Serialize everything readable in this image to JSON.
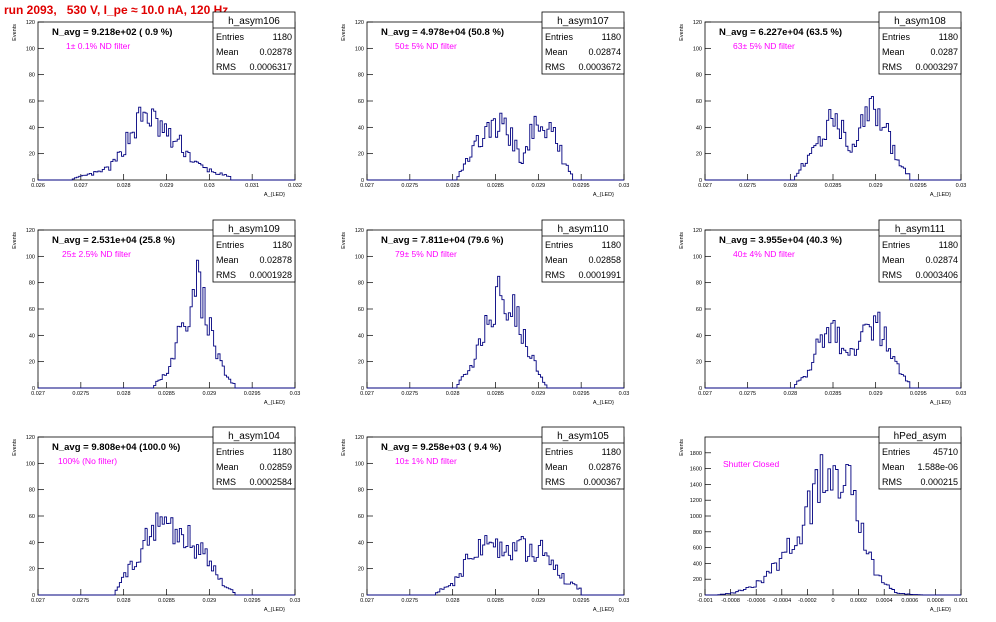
{
  "page": {
    "title": "run 2093,   530 V, I_pe ≈ 10.0 nA, 120 Hz"
  },
  "colors": {
    "title": "#e00000",
    "histogram": "#00007f",
    "annotation": "#ff00ff",
    "axis": "#000000",
    "background": "#ffffff"
  },
  "common_axis": {
    "ylabel": "Events",
    "xlabel": "A_{LED}"
  },
  "chart_data": [
    {
      "type": "bar",
      "style": "histogram-step",
      "name": "h_asym106",
      "navg": "N_avg = 9.218e+02 ( 0.9 %)",
      "note": "1± 0.1% ND filter",
      "stats": [
        [
          "Entries",
          "1180"
        ],
        [
          "Mean",
          "0.02878"
        ],
        [
          "RMS",
          "0.0006317"
        ]
      ],
      "xlim": [
        0.026,
        0.032
      ],
      "xticks": [
        "0.026",
        "0.027",
        "0.028",
        "0.029",
        "0.03",
        "0.031",
        "0.032"
      ],
      "ylim": [
        0,
        120
      ],
      "yticks": [
        "0",
        "20",
        "40",
        "60",
        "80",
        "100",
        "120"
      ],
      "bins": 120,
      "x": [
        0.0268,
        0.02695,
        0.0272,
        0.02745,
        0.0277,
        0.0279,
        0.0281,
        0.0283,
        0.02845,
        0.0286,
        0.0287,
        0.0288,
        0.02895,
        0.0291,
        0.0293,
        0.0295,
        0.0297,
        0.02995,
        0.0302,
        0.0305
      ],
      "values": [
        1,
        2,
        4,
        6,
        10,
        18,
        32,
        42,
        48,
        50,
        44,
        40,
        38,
        30,
        28,
        20,
        12,
        8,
        5,
        2
      ]
    },
    {
      "type": "bar",
      "style": "histogram-step",
      "name": "h_asym107",
      "navg": "N_avg = 4.978e+04 (50.8 %)",
      "note": "50± 5% ND filter",
      "stats": [
        [
          "Entries",
          "1180"
        ],
        [
          "Mean",
          "0.02874"
        ],
        [
          "RMS",
          "0.0003672"
        ]
      ],
      "xlim": [
        0.027,
        0.03
      ],
      "xticks": [
        "0.027",
        "0.0275",
        "0.028",
        "0.0285",
        "0.029",
        "0.0295",
        "0.03"
      ],
      "ylim": [
        0,
        120
      ],
      "yticks": [
        "0",
        "20",
        "40",
        "60",
        "80",
        "100",
        "120"
      ],
      "bins": 120,
      "x": [
        0.02805,
        0.0281,
        0.0282,
        0.0283,
        0.02845,
        0.0286,
        0.0287,
        0.0288,
        0.02885,
        0.0289,
        0.02895,
        0.029,
        0.02905,
        0.0291,
        0.0292,
        0.0293,
        0.0294
      ],
      "values": [
        2,
        8,
        20,
        30,
        38,
        42,
        30,
        15,
        18,
        30,
        44,
        52,
        48,
        40,
        30,
        15,
        4
      ]
    },
    {
      "type": "bar",
      "style": "histogram-step",
      "name": "h_asym108",
      "navg": "N_avg = 6.227e+04 (63.5 %)",
      "note": "63± 5% ND filter",
      "stats": [
        [
          "Entries",
          "1180"
        ],
        [
          "Mean",
          "0.0287"
        ],
        [
          "RMS",
          "0.0003297"
        ]
      ],
      "xlim": [
        0.027,
        0.03
      ],
      "xticks": [
        "0.027",
        "0.0275",
        "0.028",
        "0.0285",
        "0.029",
        "0.0295",
        "0.03"
      ],
      "ylim": [
        0,
        120
      ],
      "yticks": [
        "0",
        "20",
        "40",
        "60",
        "80",
        "100",
        "120"
      ],
      "bins": 120,
      "x": [
        0.02805,
        0.0282,
        0.0283,
        0.0284,
        0.0285,
        0.0286,
        0.0287,
        0.02875,
        0.0288,
        0.0289,
        0.029,
        0.02905,
        0.0291,
        0.0292,
        0.0293,
        0.0294
      ],
      "values": [
        3,
        15,
        28,
        40,
        45,
        38,
        28,
        30,
        40,
        48,
        52,
        50,
        40,
        25,
        10,
        3
      ]
    },
    {
      "type": "bar",
      "style": "histogram-step",
      "name": "h_asym109",
      "navg": "N_avg = 2.531e+04 (25.8 %)",
      "note": "25± 2.5% ND filter",
      "stats": [
        [
          "Entries",
          "1180"
        ],
        [
          "Mean",
          "0.02878"
        ],
        [
          "RMS",
          "0.0001928"
        ]
      ],
      "xlim": [
        0.027,
        0.03
      ],
      "xticks": [
        "0.027",
        "0.0275",
        "0.028",
        "0.0285",
        "0.029",
        "0.0295",
        "0.03"
      ],
      "ylim": [
        0,
        120
      ],
      "yticks": [
        "0",
        "20",
        "40",
        "60",
        "80",
        "100",
        "120"
      ],
      "bins": 120,
      "x": [
        0.02835,
        0.0285,
        0.0286,
        0.0287,
        0.0288,
        0.02885,
        0.0289,
        0.02895,
        0.029,
        0.0291,
        0.0292,
        0.0293
      ],
      "values": [
        2,
        10,
        30,
        52,
        70,
        80,
        75,
        60,
        45,
        25,
        8,
        2
      ]
    },
    {
      "type": "bar",
      "style": "histogram-step",
      "name": "h_asym110",
      "navg": "N_avg = 7.811e+04 (79.6 %)",
      "note": "79± 5% ND filter",
      "stats": [
        [
          "Entries",
          "1180"
        ],
        [
          "Mean",
          "0.02858"
        ],
        [
          "RMS",
          "0.0001991"
        ]
      ],
      "xlim": [
        0.027,
        0.03
      ],
      "xticks": [
        "0.027",
        "0.0275",
        "0.028",
        "0.0285",
        "0.029",
        "0.0295",
        "0.03"
      ],
      "ylim": [
        0,
        120
      ],
      "yticks": [
        "0",
        "20",
        "40",
        "60",
        "80",
        "100",
        "120"
      ],
      "bins": 120,
      "x": [
        0.02805,
        0.0282,
        0.0283,
        0.0284,
        0.0285,
        0.02855,
        0.0286,
        0.0287,
        0.0288,
        0.0289,
        0.029,
        0.0291
      ],
      "values": [
        3,
        12,
        30,
        48,
        65,
        75,
        70,
        60,
        48,
        30,
        12,
        2
      ]
    },
    {
      "type": "bar",
      "style": "histogram-step",
      "name": "h_asym111",
      "navg": "N_avg = 3.955e+04 (40.3 %)",
      "note": "40± 4% ND filter",
      "stats": [
        [
          "Entries",
          "1180"
        ],
        [
          "Mean",
          "0.02874"
        ],
        [
          "RMS",
          "0.0003406"
        ]
      ],
      "xlim": [
        0.027,
        0.03
      ],
      "xticks": [
        "0.027",
        "0.0275",
        "0.028",
        "0.0285",
        "0.029",
        "0.0295",
        "0.03"
      ],
      "ylim": [
        0,
        120
      ],
      "yticks": [
        "0",
        "20",
        "40",
        "60",
        "80",
        "100",
        "120"
      ],
      "bins": 120,
      "x": [
        0.02805,
        0.0282,
        0.0283,
        0.0284,
        0.0285,
        0.0286,
        0.0287,
        0.02875,
        0.0288,
        0.0289,
        0.029,
        0.0291,
        0.0292,
        0.0293,
        0.0294
      ],
      "values": [
        3,
        12,
        28,
        38,
        42,
        35,
        25,
        28,
        38,
        46,
        50,
        40,
        25,
        10,
        3
      ]
    },
    {
      "type": "bar",
      "style": "histogram-step",
      "name": "h_asym104",
      "navg": "N_avg = 9.808e+04 (100.0 %)",
      "note": "100% (No filter)",
      "stats": [
        [
          "Entries",
          "1180"
        ],
        [
          "Mean",
          "0.02859"
        ],
        [
          "RMS",
          "0.0002584"
        ]
      ],
      "xlim": [
        0.027,
        0.03
      ],
      "xticks": [
        "0.027",
        "0.0275",
        "0.028",
        "0.0285",
        "0.029",
        "0.0295",
        "0.03"
      ],
      "ylim": [
        0,
        120
      ],
      "yticks": [
        "0",
        "20",
        "40",
        "60",
        "80",
        "100",
        "120"
      ],
      "bins": 120,
      "x": [
        0.0279,
        0.028,
        0.0281,
        0.0282,
        0.0283,
        0.0284,
        0.0285,
        0.0286,
        0.0287,
        0.0288,
        0.0289,
        0.029,
        0.0291,
        0.0292,
        0.0293
      ],
      "values": [
        4,
        12,
        22,
        35,
        48,
        55,
        56,
        50,
        45,
        40,
        32,
        25,
        15,
        6,
        2
      ]
    },
    {
      "type": "bar",
      "style": "histogram-step",
      "name": "h_asym105",
      "navg": "N_avg = 9.258e+03 ( 9.4 %)",
      "note": "10± 1% ND filter",
      "stats": [
        [
          "Entries",
          "1180"
        ],
        [
          "Mean",
          "0.02876"
        ],
        [
          "RMS",
          "0.000367"
        ]
      ],
      "xlim": [
        0.027,
        0.03
      ],
      "xticks": [
        "0.027",
        "0.0275",
        "0.028",
        "0.0285",
        "0.029",
        "0.0295",
        "0.03"
      ],
      "ylim": [
        0,
        120
      ],
      "yticks": [
        "0",
        "20",
        "40",
        "60",
        "80",
        "100",
        "120"
      ],
      "bins": 120,
      "x": [
        0.0278,
        0.028,
        0.0281,
        0.0282,
        0.0283,
        0.0284,
        0.0285,
        0.0286,
        0.0287,
        0.0288,
        0.0289,
        0.029,
        0.0291,
        0.0292,
        0.0293,
        0.0295
      ],
      "values": [
        2,
        8,
        18,
        28,
        34,
        38,
        36,
        30,
        34,
        36,
        32,
        34,
        30,
        22,
        12,
        4
      ]
    },
    {
      "type": "bar",
      "style": "histogram-step",
      "name": "hPed_asym",
      "navg": "",
      "note": "Shutter Closed",
      "stats": [
        [
          "Entries",
          "45710"
        ],
        [
          "Mean",
          "1.588e-06"
        ],
        [
          "RMS",
          "0.000215"
        ]
      ],
      "xlim": [
        -0.001,
        0.001
      ],
      "xticks": [
        "-0.001",
        "-0.0008",
        "-0.0006",
        "-0.0004",
        "-0.0002",
        "0",
        "0.0002",
        "0.0004",
        "0.0006",
        "0.0008",
        "0.001"
      ],
      "ylim": [
        0,
        2000
      ],
      "yticks": [
        "0",
        "200",
        "400",
        "600",
        "800",
        "1000",
        "1200",
        "1400",
        "1600",
        "1800"
      ],
      "bins": 100,
      "x": [
        -0.0009,
        -0.0008,
        -0.0007,
        -0.0006,
        -0.0005,
        -0.0004,
        -0.0003,
        -0.0002,
        -0.0001,
        0,
        0.0001,
        0.0002,
        0.0003,
        0.0004,
        0.0005,
        0.0006,
        0.0007
      ],
      "values": [
        3,
        20,
        60,
        130,
        280,
        450,
        700,
        1000,
        1400,
        1820,
        1500,
        900,
        420,
        130,
        30,
        8,
        2
      ]
    }
  ]
}
